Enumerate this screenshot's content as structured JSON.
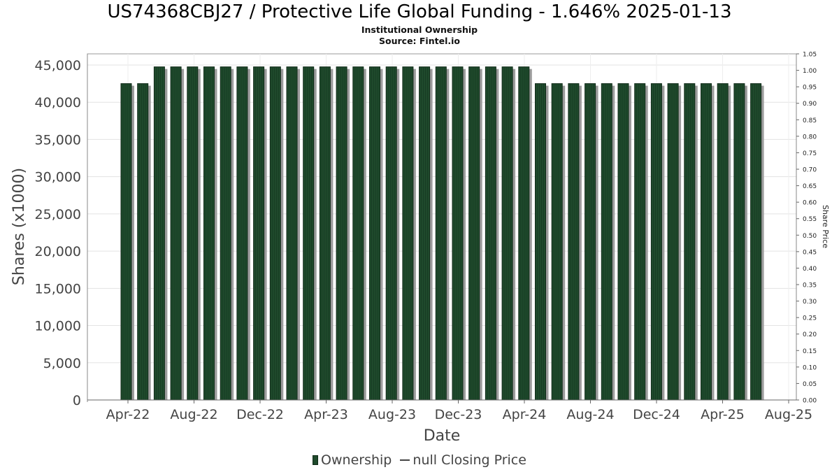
{
  "chart_data": {
    "type": "bar",
    "title": "US74368CBJ27 / Protective Life Global Funding - 1.646% 2025-01-13",
    "subtitle_lines": [
      "Institutional Ownership",
      "Source: Fintel.io"
    ],
    "xlabel": "Date",
    "ylabel": "Shares (x1000)",
    "y2label": "Share Price",
    "ylim": [
      0,
      46500
    ],
    "y2lim": [
      0,
      1.05
    ],
    "x_tick_labels": [
      "Apr-22",
      "Aug-22",
      "Dec-22",
      "Apr-23",
      "Aug-23",
      "Dec-23",
      "Apr-24",
      "Aug-24",
      "Dec-24",
      "Apr-25",
      "Aug-25"
    ],
    "y_tick_labels": [
      "0",
      "5,000",
      "10,000",
      "15,000",
      "20,000",
      "25,000",
      "30,000",
      "35,000",
      "40,000",
      "45,000"
    ],
    "y_ticks": [
      0,
      5000,
      10000,
      15000,
      20000,
      25000,
      30000,
      35000,
      40000,
      45000
    ],
    "y2_tick_labels": [
      "0.00",
      "0.05",
      "0.10",
      "0.15",
      "0.20",
      "0.25",
      "0.30",
      "0.35",
      "0.40",
      "0.45",
      "0.50",
      "0.55",
      "0.60",
      "0.65",
      "0.70",
      "0.75",
      "0.80",
      "0.85",
      "0.90",
      "0.95",
      "1.00",
      "1.05"
    ],
    "y2_ticks": [
      0,
      0.05,
      0.1,
      0.15,
      0.2,
      0.25,
      0.3,
      0.35,
      0.4,
      0.45,
      0.5,
      0.55,
      0.6,
      0.65,
      0.7,
      0.75,
      0.8,
      0.85,
      0.9,
      0.95,
      1.0,
      1.05
    ],
    "grid": true,
    "legend_position": "bottom",
    "series": [
      {
        "name": "Ownership",
        "color": "#1f4a2c",
        "values": [
          42500,
          42500,
          44750,
          44750,
          44750,
          44750,
          44750,
          44750,
          44750,
          44750,
          44750,
          44750,
          44750,
          44750,
          44750,
          44750,
          44750,
          44750,
          44750,
          44750,
          44750,
          44750,
          44750,
          44750,
          44750,
          42500,
          42500,
          42500,
          42500,
          42500,
          42500,
          42500,
          42500,
          42500,
          42500,
          42500,
          42500,
          42500,
          42500
        ]
      }
    ],
    "legend": [
      {
        "label": "Ownership",
        "kind": "bar",
        "color": "#1f4a2c"
      },
      {
        "label": "null Closing Price",
        "kind": "line",
        "color": "#444444"
      }
    ]
  }
}
